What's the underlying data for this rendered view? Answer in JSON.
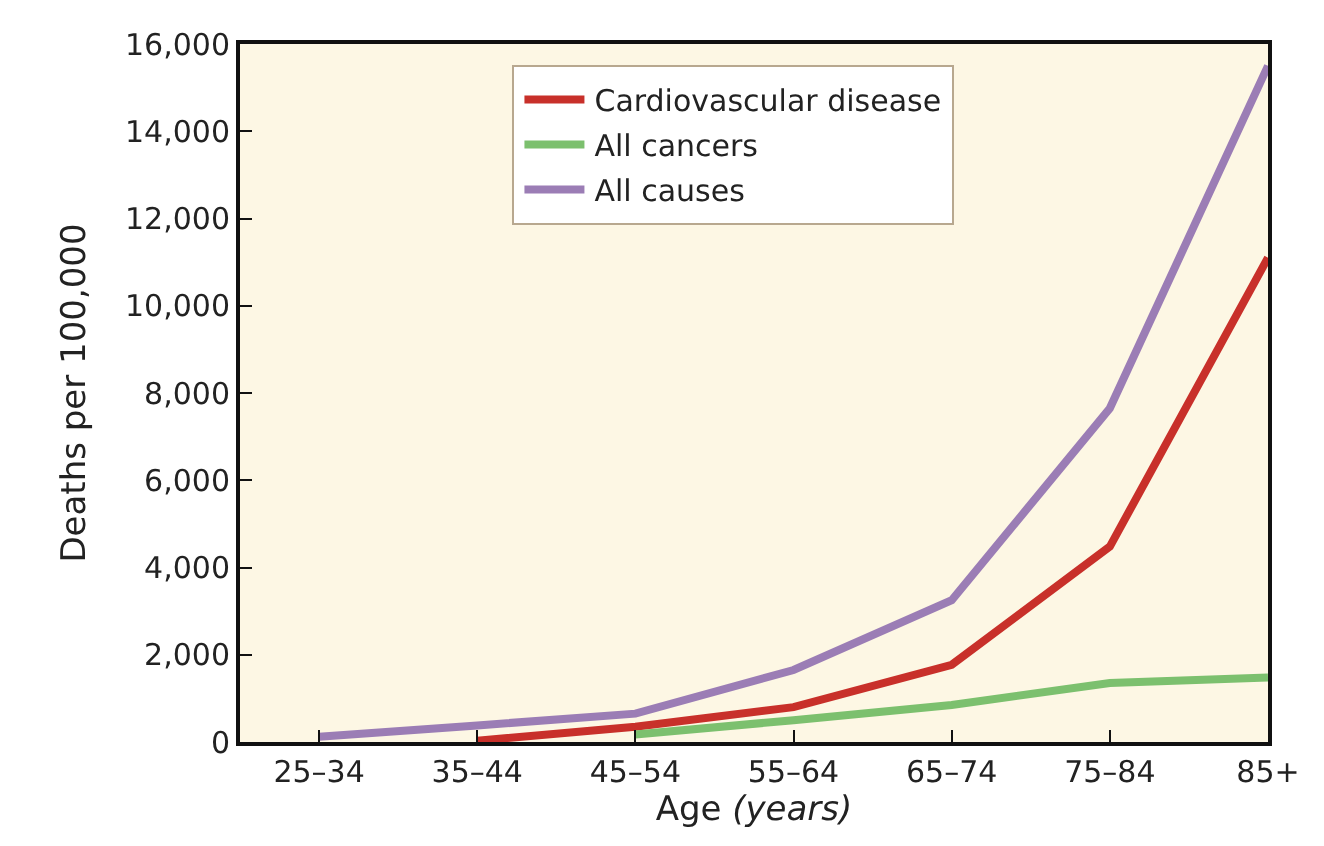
{
  "chart_data": {
    "type": "line",
    "xlabel": "Age (years)",
    "ylabel": "Deaths per 100,000",
    "categories": [
      "25–34",
      "35–44",
      "45–54",
      "55–64",
      "65–74",
      "75–84",
      "85+"
    ],
    "series": [
      {
        "name": "Cardiovascular disease",
        "color": "#c8302a",
        "values": [
          null,
          30,
          350,
          800,
          1770,
          4480,
          11100
        ]
      },
      {
        "name": "All cancers",
        "color": "#7cc06e",
        "values": [
          null,
          null,
          170,
          500,
          850,
          1350,
          1480
        ]
      },
      {
        "name": "All causes",
        "color": "#9b7db5",
        "values": [
          120,
          380,
          650,
          1650,
          3250,
          7650,
          15500
        ]
      }
    ],
    "ylim": [
      0,
      16000
    ],
    "yticks": [
      {
        "value": 0,
        "label": "0"
      },
      {
        "value": 2000,
        "label": "2,000"
      },
      {
        "value": 4000,
        "label": "4,000"
      },
      {
        "value": 6000,
        "label": "6,000"
      },
      {
        "value": 8000,
        "label": "8,000"
      },
      {
        "value": 10000,
        "label": "10,000"
      },
      {
        "value": 12000,
        "label": "12,000"
      },
      {
        "value": 14000,
        "label": "14,000"
      },
      {
        "value": 16000,
        "label": "16,000"
      }
    ],
    "grid": false,
    "legend": "top",
    "marker": "none",
    "line_style": "solid"
  }
}
